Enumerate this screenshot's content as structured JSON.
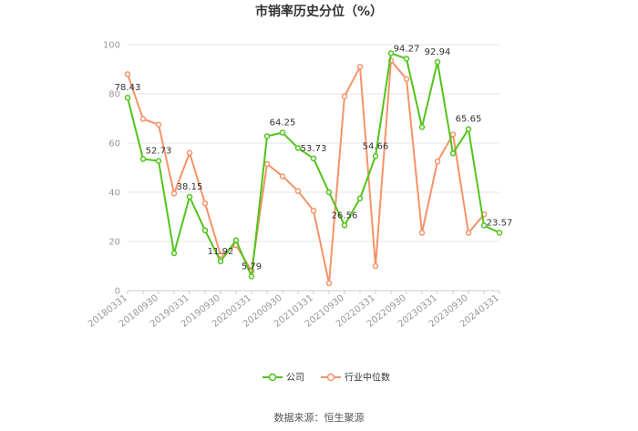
{
  "chart_data": {
    "type": "line",
    "title": "市销率历史分位（%）",
    "xlabel": "",
    "ylabel": "",
    "ylim": [
      0,
      100
    ],
    "yticks": [
      0,
      20,
      40,
      60,
      80,
      100
    ],
    "grid": true,
    "legend_position": "bottom",
    "categories": [
      "20180331",
      "20180630",
      "20180930",
      "20181231",
      "20190331",
      "20190630",
      "20190930",
      "20191231",
      "20200331",
      "20200630",
      "20200930",
      "20201231",
      "20210331",
      "20210630",
      "20210930",
      "20211231",
      "20220331",
      "20220630",
      "20220930",
      "20221231",
      "20230331",
      "20230630",
      "20230930",
      "20231231",
      "20240331"
    ],
    "shown_tick_labels": [
      "20180331",
      "20180930",
      "20190331",
      "20190930",
      "20200331",
      "20200930",
      "20210331",
      "20210930",
      "20220331",
      "20220930",
      "20230331",
      "20230930",
      "20240331"
    ],
    "series": [
      {
        "name": "公司",
        "color": "#52c41a",
        "values": [
          78.43,
          53.5,
          52.73,
          15.2,
          38.15,
          24.5,
          11.92,
          20.5,
          5.79,
          62.8,
          64.25,
          58.0,
          53.73,
          40.0,
          26.56,
          37.5,
          54.66,
          96.5,
          94.27,
          66.5,
          92.94,
          55.8,
          65.65,
          26.5,
          23.57
        ]
      },
      {
        "name": "行业中位数",
        "color": "#f5936a",
        "values": [
          88.0,
          69.8,
          67.5,
          39.5,
          56.0,
          35.5,
          14.5,
          18.5,
          8.0,
          51.5,
          46.5,
          40.5,
          32.5,
          3.0,
          79.0,
          91.0,
          10.0,
          93.5,
          86.0,
          23.5,
          52.5,
          63.5,
          23.5,
          31.0,
          null
        ]
      }
    ],
    "data_labels": [
      {
        "series": 0,
        "index": 0,
        "text": "78.43"
      },
      {
        "series": 0,
        "index": 2,
        "text": "52.73"
      },
      {
        "series": 0,
        "index": 4,
        "text": "38.15"
      },
      {
        "series": 0,
        "index": 6,
        "text": "11.92"
      },
      {
        "series": 0,
        "index": 8,
        "text": "5.79"
      },
      {
        "series": 0,
        "index": 10,
        "text": "64.25"
      },
      {
        "series": 0,
        "index": 12,
        "text": "53.73"
      },
      {
        "series": 0,
        "index": 14,
        "text": "26.56"
      },
      {
        "series": 0,
        "index": 16,
        "text": "54.66"
      },
      {
        "series": 0,
        "index": 18,
        "text": "94.27"
      },
      {
        "series": 0,
        "index": 20,
        "text": "92.94"
      },
      {
        "series": 0,
        "index": 22,
        "text": "65.65"
      },
      {
        "series": 0,
        "index": 24,
        "text": "23.57"
      }
    ],
    "source": "数据来源：恒生聚源"
  }
}
